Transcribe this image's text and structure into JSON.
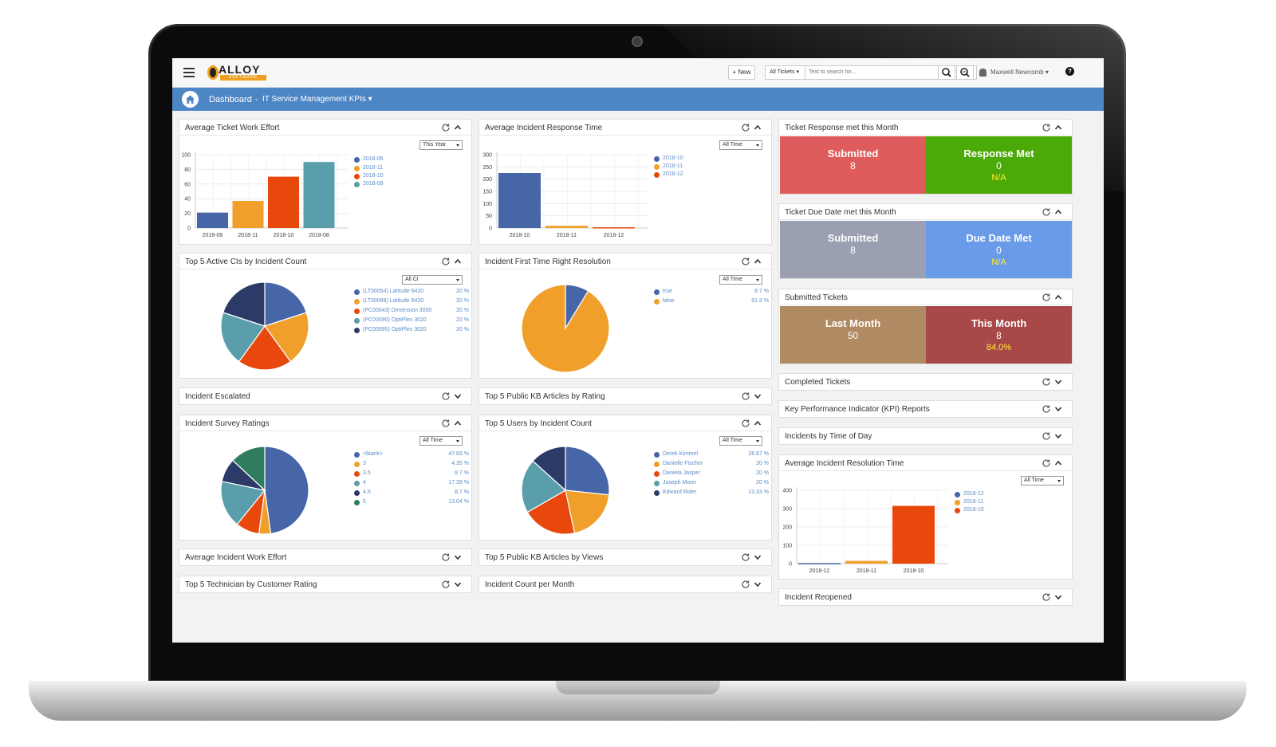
{
  "header": {
    "logo_text": "ALLOY",
    "logo_sub": "SOFTWARE",
    "new_label": "+ New",
    "search_scope": "All Tickets ▾",
    "search_placeholder": "Text to search for...",
    "user_name": "Maxwell Newcomb ▾",
    "help_label": "?"
  },
  "breadcrumb": {
    "home": "Dashboard",
    "separator": "-",
    "current": "IT Service Management KPIs ▾"
  },
  "panels": {
    "avg_ticket_work_effort": {
      "title": "Average Ticket Work Effort",
      "filter": "This Year",
      "y_ticks": [
        "100",
        "80",
        "60",
        "40",
        "20",
        "0"
      ],
      "legend": [
        "2018-06",
        "2018-11",
        "2018-10",
        "2018-08"
      ]
    },
    "avg_incident_response_time": {
      "title": "Average Incident Response Time",
      "filter": "All Time",
      "y_ticks": [
        "300",
        "250",
        "200",
        "150",
        "100",
        "50",
        "0"
      ],
      "legend": [
        "2018-10",
        "2018-11",
        "2018-12"
      ]
    },
    "ticket_response_met": {
      "title": "Ticket Response met this Month",
      "left": {
        "title": "Submitted",
        "value": "8",
        "sub": ""
      },
      "right": {
        "title": "Response Met",
        "value": "0",
        "sub": "N/A"
      }
    },
    "ticket_due_date_met": {
      "title": "Ticket Due Date met this Month",
      "left": {
        "title": "Submitted",
        "value": "8",
        "sub": ""
      },
      "right": {
        "title": "Due Date Met",
        "value": "0",
        "sub": "N/A"
      }
    },
    "submitted_tickets": {
      "title": "Submitted Tickets",
      "left": {
        "title": "Last Month",
        "value": "50",
        "sub": ""
      },
      "right": {
        "title": "This Month",
        "value": "8",
        "sub": "84.0%"
      }
    },
    "top5_cis": {
      "title": "Top 5 Active CIs by Incident Count",
      "filter": "All CI",
      "legend": [
        {
          "label": "(LT00054) Latitude 6420",
          "pct": "20 %"
        },
        {
          "label": "(LT00068) Latitude 6420",
          "pct": "20 %"
        },
        {
          "label": "(PC00043) Dimension 3000",
          "pct": "20 %"
        },
        {
          "label": "(PC00090) OptiPlex 3020",
          "pct": "20 %"
        },
        {
          "label": "(PC00095) OptiPlex 3020",
          "pct": "20 %"
        }
      ]
    },
    "first_time_right": {
      "title": "Incident First Time Right Resolution",
      "filter": "All Time",
      "legend": [
        {
          "label": "true",
          "pct": "8.7 %"
        },
        {
          "label": "false",
          "pct": "91.3 %"
        }
      ]
    },
    "completed_tickets": {
      "title": "Completed Tickets"
    },
    "kpi_reports": {
      "title": "Key Performance Indicator (KPI) Reports"
    },
    "incidents_by_time": {
      "title": "Incidents by Time of Day"
    },
    "incident_escalated": {
      "title": "Incident Escalated"
    },
    "top5_kb_rating": {
      "title": "Top 5 Public KB Articles by Rating"
    },
    "survey_ratings": {
      "title": "Incident Survey Ratings",
      "filter": "All Time",
      "legend": [
        {
          "label": "<blank>",
          "pct": "47.83 %"
        },
        {
          "label": "3",
          "pct": "4.35 %"
        },
        {
          "label": "3.5",
          "pct": "8.7 %"
        },
        {
          "label": "4",
          "pct": "17.39 %"
        },
        {
          "label": "4.5",
          "pct": "8.7 %"
        },
        {
          "label": "5",
          "pct": "13.04 %"
        }
      ]
    },
    "top5_users": {
      "title": "Top 5 Users by Incident Count",
      "filter": "All Time",
      "legend": [
        {
          "label": "Derek Kimmel",
          "pct": "26.67 %"
        },
        {
          "label": "Danielle Fischer",
          "pct": "20 %"
        },
        {
          "label": "Daniela Jasper",
          "pct": "20 %"
        },
        {
          "label": "Joseph Moon",
          "pct": "20 %"
        },
        {
          "label": "Edward Rider",
          "pct": "13.33 %"
        }
      ]
    },
    "avg_incident_resolution": {
      "title": "Average Incident Resolution Time",
      "filter": "All Time",
      "y_ticks": [
        "400",
        "300",
        "200",
        "100",
        "0"
      ],
      "legend": [
        "2018-12",
        "2018-11",
        "2018-10"
      ]
    },
    "avg_incident_work_effort": {
      "title": "Average Incident Work Effort"
    },
    "top5_kb_views": {
      "title": "Top 5 Public KB Articles by Views"
    },
    "top5_technician": {
      "title": "Top 5 Technician by Customer Rating"
    },
    "incident_count_month": {
      "title": "Incident Count per Month"
    },
    "incident_reopened": {
      "title": "Incident Reopened"
    }
  },
  "colors": {
    "blue": "#4666a8",
    "orange": "#f0a02a",
    "red_orange": "#e8480c",
    "teal": "#5a9eac",
    "navy": "#2b3a66",
    "green": "#2e7d5e",
    "response_red": "#e05c5c",
    "response_green": "#4caa08",
    "due_gray": "#9aa0b2",
    "due_blue": "#6a9be8",
    "last_month_tan": "#b08a62",
    "this_month_red": "#a84848",
    "crumb_blue": "#4d86c5"
  },
  "chart_data": [
    {
      "type": "bar",
      "title": "Average Ticket Work Effort",
      "categories": [
        "2018-06",
        "2018-11",
        "2018-10",
        "2018-08"
      ],
      "values": [
        21,
        37,
        70,
        90
      ],
      "ylim": [
        0,
        100
      ],
      "colors": [
        "#4666a8",
        "#f0a02a",
        "#e8480c",
        "#5a9eac"
      ]
    },
    {
      "type": "bar",
      "title": "Average Incident Response Time",
      "categories": [
        "2018-10",
        "2018-11",
        "2018-12"
      ],
      "values": [
        225,
        9,
        3
      ],
      "ylim": [
        0,
        300
      ],
      "colors": [
        "#4666a8",
        "#f0a02a",
        "#e8480c"
      ]
    },
    {
      "type": "pie",
      "title": "Top 5 Active CIs by Incident Count",
      "labels": [
        "(LT00054) Latitude 6420",
        "(LT00068) Latitude 6420",
        "(PC00043) Dimension 3000",
        "(PC00090) OptiPlex 3020",
        "(PC00095) OptiPlex 3020"
      ],
      "values": [
        20,
        20,
        20,
        20,
        20
      ],
      "colors": [
        "#4666a8",
        "#f0a02a",
        "#e8480c",
        "#5a9eac",
        "#2b3a66"
      ]
    },
    {
      "type": "pie",
      "title": "Incident First Time Right Resolution",
      "labels": [
        "true",
        "false"
      ],
      "values": [
        8.7,
        91.3
      ],
      "colors": [
        "#4666a8",
        "#f0a02a"
      ]
    },
    {
      "type": "pie",
      "title": "Incident Survey Ratings",
      "labels": [
        "<blank>",
        "3",
        "3.5",
        "4",
        "4.5",
        "5"
      ],
      "values": [
        47.83,
        4.35,
        8.7,
        17.39,
        8.7,
        13.04
      ],
      "colors": [
        "#4666a8",
        "#f0a02a",
        "#e8480c",
        "#5a9eac",
        "#2b3a66",
        "#2e7d5e"
      ]
    },
    {
      "type": "pie",
      "title": "Top 5 Users by Incident Count",
      "labels": [
        "Derek Kimmel",
        "Danielle Fischer",
        "Daniela Jasper",
        "Joseph Moon",
        "Edward Rider"
      ],
      "values": [
        26.67,
        20,
        20,
        20,
        13.33
      ],
      "colors": [
        "#4666a8",
        "#f0a02a",
        "#e8480c",
        "#5a9eac",
        "#2b3a66"
      ]
    },
    {
      "type": "bar",
      "title": "Average Incident Resolution Time",
      "categories": [
        "2018-12",
        "2018-11",
        "2018-10"
      ],
      "values": [
        3,
        15,
        315
      ],
      "ylim": [
        0,
        400
      ],
      "colors": [
        "#4666a8",
        "#f0a02a",
        "#e8480c"
      ]
    }
  ]
}
